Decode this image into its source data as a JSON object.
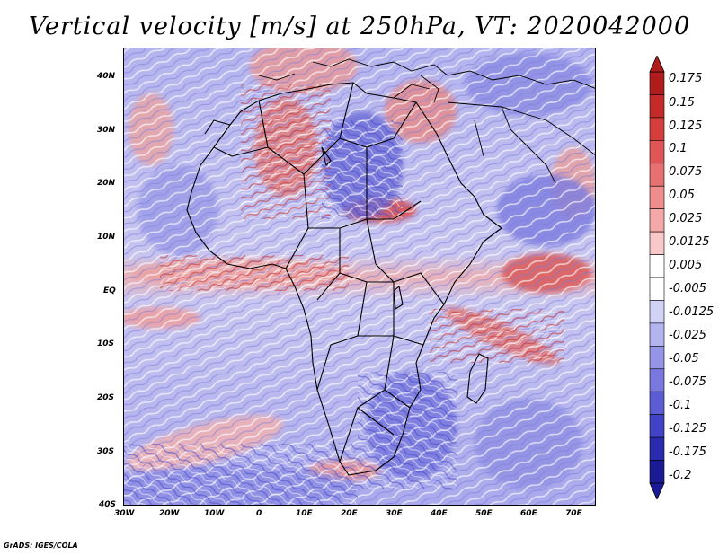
{
  "title": "Vertical velocity [m/s] at 250hPa, VT: 2020042000",
  "footer": "GrADS: IGES/COLA",
  "lat_labels": [
    "40N",
    "30N",
    "20N",
    "10N",
    "EQ",
    "10S",
    "20S",
    "30S",
    "40S"
  ],
  "lon_labels": [
    "30W",
    "20W",
    "10W",
    "0",
    "10E",
    "20E",
    "30E",
    "40E",
    "50E",
    "60E",
    "70E"
  ],
  "colorbar": {
    "labels": [
      "0.175",
      "0.15",
      "0.125",
      "0.1",
      "0.075",
      "0.05",
      "0.025",
      "0.0125",
      "0.005",
      "-0.005",
      "-0.0125",
      "-0.025",
      "-0.05",
      "-0.075",
      "-0.1",
      "-0.125",
      "-0.175",
      "-0.2"
    ],
    "colors": [
      "#b01c1c",
      "#c52a2a",
      "#d63d3d",
      "#e05656",
      "#e87070",
      "#ef8c8c",
      "#f4a8a8",
      "#f9c8c8",
      "#ffffff",
      "#ffffff",
      "#d2d2f7",
      "#b3b3f0",
      "#9595e8",
      "#7878df",
      "#5c5cd4",
      "#4242c6",
      "#2b2bb0",
      "#1a1a95"
    ]
  }
}
